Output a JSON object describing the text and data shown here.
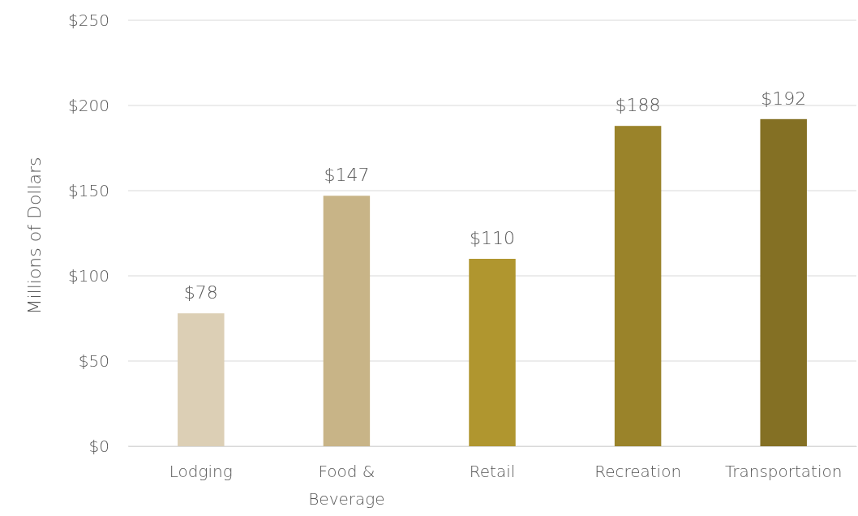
{
  "chart_data": {
    "type": "bar",
    "ylabel": "Millions of Dollars",
    "categories": [
      "Lodging",
      "Food & Beverage",
      "Retail",
      "Recreation",
      "Transportation"
    ],
    "values": [
      78,
      147,
      110,
      188,
      192
    ],
    "colors": [
      "#dccfb5",
      "#c8b487",
      "#b0962f",
      "#9a832a",
      "#847024"
    ],
    "value_labels": [
      "$78",
      "$147",
      "$110",
      "$188",
      "$192"
    ],
    "ylim": [
      0,
      250
    ],
    "yticks": [
      {
        "value": 0,
        "label": "$0"
      },
      {
        "value": 50,
        "label": "$50"
      },
      {
        "value": 100,
        "label": "$100"
      },
      {
        "value": 150,
        "label": "$150"
      },
      {
        "value": 200,
        "label": "$200"
      },
      {
        "value": 250,
        "label": "$250"
      }
    ],
    "grid": "y"
  }
}
